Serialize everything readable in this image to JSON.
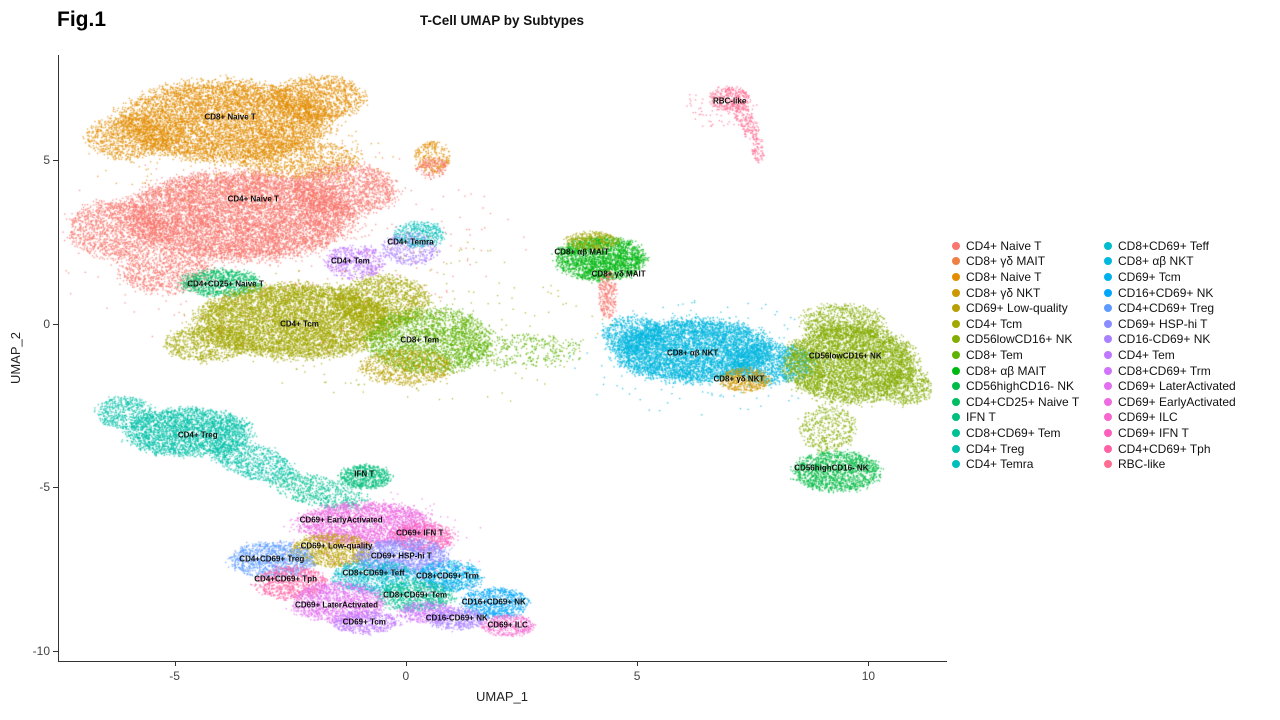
{
  "figure": {
    "label": "Fig.1"
  },
  "chart_data": {
    "type": "scatter",
    "title": "T-Cell UMAP by Subtypes",
    "xlabel": "UMAP_1",
    "ylabel": "UMAP_2",
    "xlim": [
      -7.5,
      11.7
    ],
    "ylim": [
      -10.3,
      8.2
    ],
    "x_ticks": [
      -5,
      0,
      5,
      10
    ],
    "y_ticks": [
      5,
      0,
      -5,
      -10
    ],
    "grid": false,
    "legend_position": "right",
    "legend": [
      {
        "label": "CD4+ Naive T",
        "color": "#F8766D"
      },
      {
        "label": "CD8+ γδ MAIT",
        "color": "#EE8044"
      },
      {
        "label": "CD8+ Naive T",
        "color": "#E28D00"
      },
      {
        "label": "CD8+ γδ NKT",
        "color": "#CE9700"
      },
      {
        "label": "CD69+ Low-quality",
        "color": "#B9A000"
      },
      {
        "label": "CD4+ Tcm",
        "color": "#A2A800"
      },
      {
        "label": "CD56lowCD16+ NK",
        "color": "#84AD00"
      },
      {
        "label": "CD8+ Tem",
        "color": "#5CB300"
      },
      {
        "label": "CD8+ αβ MAIT",
        "color": "#00B813"
      },
      {
        "label": "CD56highCD16- NK",
        "color": "#00BB45"
      },
      {
        "label": "CD4+CD25+ Naive T",
        "color": "#00BD64"
      },
      {
        "label": "IFN T",
        "color": "#00BE7D"
      },
      {
        "label": "CD8+CD69+ Tem",
        "color": "#00C094"
      },
      {
        "label": "CD4+ Treg",
        "color": "#00C0A9"
      },
      {
        "label": "CD4+ Temra",
        "color": "#00BFBC"
      },
      {
        "label": "CD8+CD69+ Teff",
        "color": "#00BCCD"
      },
      {
        "label": "CD8+ αβ NKT",
        "color": "#00B7DF"
      },
      {
        "label": "CD69+ Tcm",
        "color": "#00B0EE"
      },
      {
        "label": "CD16+CD69+ NK",
        "color": "#00A6FA"
      },
      {
        "label": "CD4+CD69+ Treg",
        "color": "#5E9BFF"
      },
      {
        "label": "CD69+ HSP-hi T",
        "color": "#8A8DFF"
      },
      {
        "label": "CD16-CD69+ NK",
        "color": "#A980FF"
      },
      {
        "label": "CD4+ Tem",
        "color": "#C077FF"
      },
      {
        "label": "CD8+CD69+ Trm",
        "color": "#D273FC"
      },
      {
        "label": "CD69+ LaterActivated",
        "color": "#E26EF0"
      },
      {
        "label": "CD69+ EarlyActivated",
        "color": "#ED6CE1"
      },
      {
        "label": "CD69+ ILC",
        "color": "#F566CF"
      },
      {
        "label": "CD69+ IFN T",
        "color": "#FB61BA"
      },
      {
        "label": "CD4+CD69+ Tph",
        "color": "#FF62A4"
      },
      {
        "label": "RBC-like",
        "color": "#FF6C91"
      }
    ],
    "point_labels": [
      {
        "text": "CD8+ Naive T",
        "x": -3.8,
        "y": 6.3
      },
      {
        "text": "CD4+ Naive T",
        "x": -3.3,
        "y": 3.8
      },
      {
        "text": "CD4+CD25+ Naive T",
        "x": -3.9,
        "y": 1.2
      },
      {
        "text": "CD4+ Tcm",
        "x": -2.3,
        "y": 0.0
      },
      {
        "text": "CD4+ Tem",
        "x": -1.2,
        "y": 1.9
      },
      {
        "text": "CD4+ Temra",
        "x": 0.1,
        "y": 2.5
      },
      {
        "text": "CD8+ Tem",
        "x": 0.3,
        "y": -0.5
      },
      {
        "text": "CD8+ αβ MAIT",
        "x": 3.8,
        "y": 2.2
      },
      {
        "text": "CD8+ γδ MAIT",
        "x": 4.6,
        "y": 1.5
      },
      {
        "text": "CD8+ αβ NKT",
        "x": 6.2,
        "y": -0.9
      },
      {
        "text": "CD8+ γδ NKT",
        "x": 7.2,
        "y": -1.7
      },
      {
        "text": "CD56lowCD16+ NK",
        "x": 9.5,
        "y": -1.0
      },
      {
        "text": "CD56highCD16- NK",
        "x": 9.2,
        "y": -4.4
      },
      {
        "text": "CD4+ Treg",
        "x": -4.5,
        "y": -3.4
      },
      {
        "text": "IFN T",
        "x": -0.9,
        "y": -4.6
      },
      {
        "text": "RBC-like",
        "x": 7.0,
        "y": 6.8
      },
      {
        "text": "CD69+ EarlyActivated",
        "x": -1.4,
        "y": -6.0
      },
      {
        "text": "CD69+ IFN T",
        "x": 0.3,
        "y": -6.4
      },
      {
        "text": "CD69+ Low-quality",
        "x": -1.5,
        "y": -6.8
      },
      {
        "text": "CD69+ HSP-hi T",
        "x": -0.1,
        "y": -7.1
      },
      {
        "text": "CD4+CD69+ Treg",
        "x": -2.9,
        "y": -7.2
      },
      {
        "text": "CD4+CD69+ Tph",
        "x": -2.6,
        "y": -7.8
      },
      {
        "text": "CD8+CD69+ Teff",
        "x": -0.7,
        "y": -7.6
      },
      {
        "text": "CD8+CD69+ Trm",
        "x": 0.9,
        "y": -7.7
      },
      {
        "text": "CD8+CD69+ Tem",
        "x": 0.2,
        "y": -8.3
      },
      {
        "text": "CD69+ LaterActivated",
        "x": -1.5,
        "y": -8.6
      },
      {
        "text": "CD69+ Tcm",
        "x": -0.9,
        "y": -9.1
      },
      {
        "text": "CD16+CD69+ NK",
        "x": 1.9,
        "y": -8.5
      },
      {
        "text": "CD16-CD69+ NK",
        "x": 1.1,
        "y": -9.0
      },
      {
        "text": "CD69+ ILC",
        "x": 2.2,
        "y": -9.2
      }
    ],
    "clusters": [
      {
        "ci": 2,
        "x": -3.9,
        "y": 6.2,
        "rx": 2.0,
        "ry": 1.1,
        "n": 7000
      },
      {
        "ci": 2,
        "x": -1.9,
        "y": 6.9,
        "rx": 0.9,
        "ry": 0.6,
        "n": 1200
      },
      {
        "ci": 2,
        "x": -6.0,
        "y": 5.7,
        "rx": 0.8,
        "ry": 0.6,
        "n": 900
      },
      {
        "ci": 2,
        "x": -2.3,
        "y": 5.0,
        "rx": 1.2,
        "ry": 0.5,
        "n": 900
      },
      {
        "ci": 2,
        "x": 0.55,
        "y": 5.1,
        "rx": 0.35,
        "ry": 0.45,
        "n": 260
      },
      {
        "ci": 0,
        "x": 0.55,
        "y": 4.8,
        "rx": 0.3,
        "ry": 0.3,
        "n": 150
      },
      {
        "ci": 0,
        "x": -3.6,
        "y": 3.3,
        "rx": 2.2,
        "ry": 1.2,
        "n": 9000
      },
      {
        "ci": 0,
        "x": -6.3,
        "y": 2.9,
        "rx": 0.9,
        "ry": 0.8,
        "n": 1400
      },
      {
        "ci": 0,
        "x": -1.3,
        "y": 4.1,
        "rx": 1.0,
        "ry": 0.7,
        "n": 1500
      },
      {
        "ci": 0,
        "x": -5.2,
        "y": 1.6,
        "rx": 0.9,
        "ry": 0.6,
        "n": 900
      },
      {
        "ci": 10,
        "x": -4.0,
        "y": 1.25,
        "rx": 0.8,
        "ry": 0.38,
        "n": 900
      },
      {
        "ci": 5,
        "x": -2.4,
        "y": 0.1,
        "rx": 1.9,
        "ry": 1.0,
        "n": 7500
      },
      {
        "ci": 5,
        "x": -0.5,
        "y": 0.7,
        "rx": 0.9,
        "ry": 0.7,
        "n": 1500
      },
      {
        "ci": 5,
        "x": -4.3,
        "y": -0.6,
        "rx": 0.8,
        "ry": 0.5,
        "n": 800
      },
      {
        "ci": 22,
        "x": -1.1,
        "y": 1.9,
        "rx": 0.6,
        "ry": 0.45,
        "n": 550
      },
      {
        "ci": 21,
        "x": 0.1,
        "y": 2.3,
        "rx": 0.55,
        "ry": 0.45,
        "n": 420
      },
      {
        "ci": 14,
        "x": 0.3,
        "y": 2.75,
        "rx": 0.5,
        "ry": 0.35,
        "n": 380
      },
      {
        "ci": 7,
        "x": 0.5,
        "y": -0.5,
        "rx": 1.2,
        "ry": 0.9,
        "n": 2600
      },
      {
        "ci": 4,
        "x": 0.0,
        "y": -1.3,
        "rx": 0.9,
        "ry": 0.5,
        "n": 800
      },
      {
        "ci": 7,
        "x": 2.4,
        "y": -0.8,
        "rx": 1.3,
        "ry": 0.45,
        "n": 420
      },
      {
        "ci": 8,
        "x": 4.2,
        "y": 2.0,
        "rx": 0.85,
        "ry": 0.6,
        "n": 2300
      },
      {
        "ci": 5,
        "x": 4.0,
        "y": 2.55,
        "rx": 0.55,
        "ry": 0.25,
        "n": 350
      },
      {
        "ci": 0,
        "x": 4.35,
        "y": 0.9,
        "rx": 0.18,
        "ry": 0.65,
        "n": 280
      },
      {
        "ci": 16,
        "x": 6.2,
        "y": -0.8,
        "rx": 1.5,
        "ry": 0.85,
        "n": 6000
      },
      {
        "ci": 16,
        "x": 7.9,
        "y": -1.2,
        "rx": 0.8,
        "ry": 0.55,
        "n": 1300
      },
      {
        "ci": 16,
        "x": 4.9,
        "y": -0.3,
        "rx": 0.6,
        "ry": 0.5,
        "n": 700
      },
      {
        "ci": 3,
        "x": 7.3,
        "y": -1.7,
        "rx": 0.5,
        "ry": 0.32,
        "n": 480
      },
      {
        "ci": 6,
        "x": 9.6,
        "y": -1.2,
        "rx": 1.25,
        "ry": 1.05,
        "n": 5200
      },
      {
        "ci": 6,
        "x": 9.4,
        "y": 0.1,
        "rx": 0.8,
        "ry": 0.45,
        "n": 700
      },
      {
        "ci": 6,
        "x": 10.8,
        "y": -1.9,
        "rx": 0.5,
        "ry": 0.5,
        "n": 500
      },
      {
        "ci": 6,
        "x": 9.1,
        "y": -3.2,
        "rx": 0.55,
        "ry": 0.65,
        "n": 450
      },
      {
        "ci": 9,
        "x": 9.3,
        "y": -4.5,
        "rx": 0.85,
        "ry": 0.55,
        "n": 1500
      },
      {
        "ci": 13,
        "x": -4.7,
        "y": -3.3,
        "rx": 1.2,
        "ry": 0.65,
        "n": 2800
      },
      {
        "ci": 13,
        "x": -6.1,
        "y": -2.7,
        "rx": 0.55,
        "ry": 0.45,
        "n": 500
      },
      {
        "ci": 13,
        "x": -3.3,
        "y": -4.2,
        "rx": 0.9,
        "ry": 0.45,
        "n": 800,
        "rot": -25
      },
      {
        "ci": 12,
        "x": -1.9,
        "y": -5.1,
        "rx": 1.0,
        "ry": 0.4,
        "n": 650,
        "rot": -20
      },
      {
        "ci": 11,
        "x": -0.9,
        "y": -4.65,
        "rx": 0.5,
        "ry": 0.33,
        "n": 650
      },
      {
        "ci": 25,
        "x": -0.9,
        "y": -6.1,
        "rx": 1.3,
        "ry": 0.6,
        "n": 2600
      },
      {
        "ci": 27,
        "x": 0.35,
        "y": -6.5,
        "rx": 0.6,
        "ry": 0.4,
        "n": 750
      },
      {
        "ci": 4,
        "x": -1.6,
        "y": -6.9,
        "rx": 0.8,
        "ry": 0.45,
        "n": 950
      },
      {
        "ci": 20,
        "x": -0.1,
        "y": -7.1,
        "rx": 0.9,
        "ry": 0.5,
        "n": 1500
      },
      {
        "ci": 19,
        "x": -2.9,
        "y": -7.2,
        "rx": 0.8,
        "ry": 0.5,
        "n": 1100
      },
      {
        "ci": 28,
        "x": -2.5,
        "y": -7.9,
        "rx": 0.7,
        "ry": 0.45,
        "n": 800
      },
      {
        "ci": 15,
        "x": -0.7,
        "y": -7.7,
        "rx": 0.8,
        "ry": 0.45,
        "n": 1000
      },
      {
        "ci": 17,
        "x": 0.9,
        "y": -7.7,
        "rx": 0.65,
        "ry": 0.42,
        "n": 850
      },
      {
        "ci": 12,
        "x": 0.2,
        "y": -8.3,
        "rx": 0.75,
        "ry": 0.42,
        "n": 850
      },
      {
        "ci": 24,
        "x": -1.5,
        "y": -8.5,
        "rx": 0.9,
        "ry": 0.55,
        "n": 1300
      },
      {
        "ci": 22,
        "x": -0.9,
        "y": -9.1,
        "rx": 0.65,
        "ry": 0.32,
        "n": 550
      },
      {
        "ci": 23,
        "x": 0.45,
        "y": -8.8,
        "rx": 0.55,
        "ry": 0.3,
        "n": 450
      },
      {
        "ci": 18,
        "x": 1.9,
        "y": -8.5,
        "rx": 0.65,
        "ry": 0.42,
        "n": 750
      },
      {
        "ci": 21,
        "x": 1.1,
        "y": -9.0,
        "rx": 0.55,
        "ry": 0.3,
        "n": 520
      },
      {
        "ci": 26,
        "x": 2.2,
        "y": -9.2,
        "rx": 0.5,
        "ry": 0.3,
        "n": 420
      },
      {
        "ci": 29,
        "x": 7.0,
        "y": 6.9,
        "rx": 0.4,
        "ry": 0.35,
        "n": 320
      },
      {
        "ci": 29,
        "x": 7.35,
        "y": 6.2,
        "rx": 0.18,
        "ry": 0.6,
        "n": 180,
        "rot": 15
      },
      {
        "ci": 29,
        "x": 6.8,
        "y": 6.6,
        "rx": 0.7,
        "ry": 0.55,
        "n": 90
      },
      {
        "ci": 29,
        "x": 7.6,
        "y": 5.3,
        "rx": 0.12,
        "ry": 0.4,
        "n": 70
      },
      {
        "ci": 0,
        "x": -2.5,
        "y": 2.5,
        "rx": 4.5,
        "ry": 3.0,
        "n": 280
      },
      {
        "ci": 5,
        "x": 0.5,
        "y": 0.0,
        "rx": 3.5,
        "ry": 2.2,
        "n": 200
      },
      {
        "ci": 16,
        "x": 6.5,
        "y": -1.0,
        "rx": 2.6,
        "ry": 1.6,
        "n": 140
      },
      {
        "ci": 25,
        "x": -0.5,
        "y": -7.0,
        "rx": 2.2,
        "ry": 1.6,
        "n": 160
      },
      {
        "ci": 2,
        "x": -3.5,
        "y": 5.0,
        "rx": 3.0,
        "ry": 1.2,
        "n": 200
      }
    ]
  }
}
